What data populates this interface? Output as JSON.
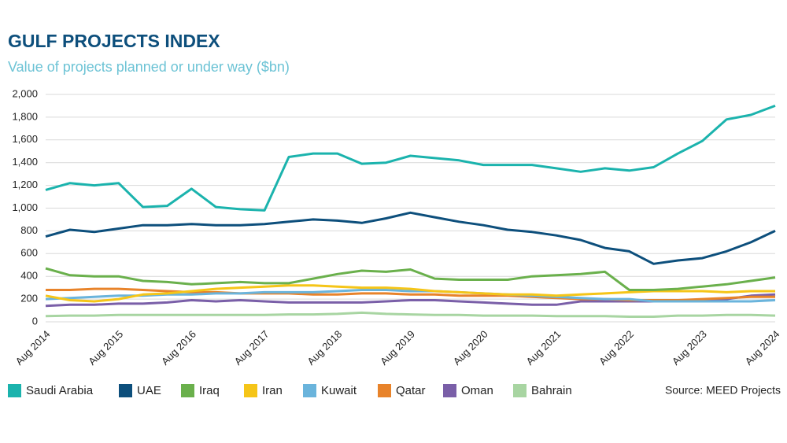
{
  "chart_data": {
    "type": "line",
    "title": "GULF PROJECTS INDEX",
    "subtitle": "Value of projects planned or under way ($bn)",
    "source": "Source: MEED Projects",
    "x": [
      "Aug 2014",
      "Dec 2014",
      "Apr 2015",
      "Aug 2015",
      "Dec 2015",
      "Apr 2016",
      "Aug 2016",
      "Dec 2016",
      "Apr 2017",
      "Aug 2017",
      "Dec 2017",
      "Apr 2018",
      "Aug 2018",
      "Dec 2018",
      "Apr 2019",
      "Aug 2019",
      "Dec 2019",
      "Apr 2020",
      "Aug 2020",
      "Dec 2020",
      "Apr 2021",
      "Aug 2021",
      "Dec 2021",
      "Apr 2022",
      "Aug 2022",
      "Dec 2022",
      "Apr 2023",
      "Aug 2023",
      "Dec 2023",
      "Apr 2024",
      "Aug 2024"
    ],
    "xticks": [
      "Aug 2014",
      "Aug 2015",
      "Aug 2016",
      "Aug 2017",
      "Aug 2018",
      "Aug 2019",
      "Aug 2020",
      "Aug 2021",
      "Aug 2022",
      "Aug 2023",
      "Aug 2024"
    ],
    "ylim": [
      0,
      2000
    ],
    "yticks": [
      0,
      200,
      400,
      600,
      800,
      {
        "value": 1000,
        "label": "1,000"
      },
      {
        "value": 1200,
        "label": "1,200"
      },
      {
        "value": 1400,
        "label": "1,400"
      },
      {
        "value": 1600,
        "label": "1,600"
      },
      {
        "value": 1800,
        "label": "1,800"
      },
      {
        "value": 2000,
        "label": "2,000"
      }
    ],
    "grid": true,
    "series": [
      {
        "name": "Saudi Arabia",
        "color": "#1bb3ad",
        "values": [
          1160,
          1220,
          1200,
          1220,
          1010,
          1020,
          1170,
          1010,
          990,
          980,
          1450,
          1480,
          1480,
          1390,
          1400,
          1460,
          1440,
          1420,
          1380,
          1380,
          1380,
          1350,
          1320,
          1350,
          1330,
          1360,
          1480,
          1590,
          1780,
          1820,
          1900
        ]
      },
      {
        "name": "UAE",
        "color": "#0d4f7c",
        "values": [
          750,
          810,
          790,
          820,
          850,
          850,
          860,
          850,
          850,
          860,
          880,
          900,
          890,
          870,
          910,
          960,
          920,
          880,
          850,
          810,
          790,
          760,
          720,
          650,
          620,
          510,
          540,
          560,
          620,
          700,
          800
        ]
      },
      {
        "name": "Iraq",
        "color": "#6ab04c",
        "values": [
          470,
          410,
          400,
          400,
          360,
          350,
          330,
          340,
          350,
          340,
          340,
          380,
          420,
          450,
          440,
          460,
          380,
          370,
          370,
          370,
          400,
          410,
          420,
          440,
          280,
          280,
          290,
          310,
          330,
          360,
          390
        ]
      },
      {
        "name": "Iran",
        "color": "#f5c518",
        "values": [
          230,
          190,
          180,
          200,
          240,
          250,
          270,
          290,
          300,
          310,
          320,
          320,
          310,
          300,
          300,
          290,
          270,
          260,
          250,
          240,
          240,
          230,
          240,
          250,
          260,
          270,
          270,
          270,
          260,
          270,
          270
        ]
      },
      {
        "name": "Kuwait",
        "color": "#6ab4dc",
        "values": [
          200,
          210,
          220,
          230,
          230,
          240,
          240,
          250,
          250,
          260,
          260,
          260,
          270,
          280,
          280,
          270,
          270,
          260,
          250,
          240,
          230,
          220,
          210,
          200,
          200,
          180,
          180,
          180,
          180,
          180,
          190
        ]
      },
      {
        "name": "Qatar",
        "color": "#e8832a",
        "values": [
          280,
          280,
          290,
          290,
          280,
          270,
          260,
          260,
          250,
          250,
          250,
          240,
          240,
          250,
          250,
          240,
          240,
          230,
          230,
          230,
          220,
          210,
          200,
          200,
          190,
          190,
          190,
          200,
          210,
          220,
          220
        ]
      },
      {
        "name": "Oman",
        "color": "#7a5fa8",
        "values": [
          140,
          150,
          150,
          160,
          160,
          170,
          190,
          180,
          190,
          180,
          170,
          170,
          170,
          170,
          180,
          190,
          190,
          180,
          170,
          160,
          150,
          150,
          180,
          180,
          180,
          180,
          180,
          190,
          200,
          230,
          240
        ]
      },
      {
        "name": "Bahrain",
        "color": "#a8d5a2",
        "values": [
          50,
          55,
          55,
          60,
          60,
          60,
          60,
          60,
          60,
          60,
          65,
          65,
          70,
          80,
          70,
          65,
          60,
          60,
          55,
          55,
          55,
          50,
          50,
          50,
          45,
          45,
          55,
          55,
          60,
          60,
          55
        ]
      }
    ]
  }
}
